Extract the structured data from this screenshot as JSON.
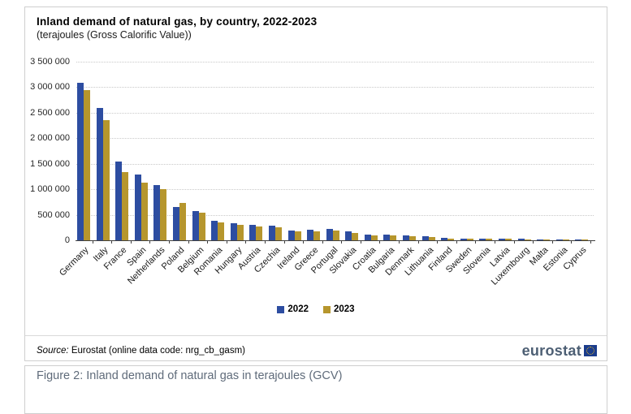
{
  "chart_data": {
    "type": "bar",
    "title": "Inland demand of natural gas, by country, 2022-2023",
    "subtitle": "(terajoules (Gross Calorific Value))",
    "categories": [
      "Germany",
      "Italy",
      "France",
      "Spain",
      "Netherlands",
      "Poland",
      "Belgium",
      "Romania",
      "Hungary",
      "Austria",
      "Czechia",
      "Ireland",
      "Greece",
      "Portugal",
      "Slovakia",
      "Croatia",
      "Bulgaria",
      "Denmark",
      "Lithuania",
      "Finland",
      "Sweden",
      "Slovenia",
      "Latvia",
      "Luxembourg",
      "Malta",
      "Estonia",
      "Cyprus"
    ],
    "series": [
      {
        "name": "2022",
        "color": "#2d4da1",
        "values": [
          3080000,
          2600000,
          1540000,
          1290000,
          1090000,
          660000,
          580000,
          390000,
          340000,
          305000,
          290000,
          195000,
          210000,
          230000,
          180000,
          105000,
          115000,
          100000,
          75000,
          55000,
          35000,
          32000,
          30000,
          25000,
          14000,
          12000,
          7000
        ]
      },
      {
        "name": "2023",
        "color": "#b6962d",
        "values": [
          2950000,
          2350000,
          1330000,
          1130000,
          1000000,
          735000,
          540000,
          355000,
          295000,
          265000,
          250000,
          175000,
          170000,
          185000,
          150000,
          90000,
          100000,
          80000,
          60000,
          40000,
          30000,
          30000,
          25000,
          22000,
          12000,
          10000,
          7000
        ]
      }
    ],
    "ylim": [
      0,
      3500000
    ],
    "ytick_step": 500000,
    "ytick_labels": [
      "0",
      "500 000",
      "1 000 000",
      "1 500 000",
      "2 000 000",
      "2 500 000",
      "3 000 000",
      "3 500 000"
    ],
    "grid": "horizontal-dotted",
    "legend_position": "bottom-center"
  },
  "legend": {
    "items": [
      {
        "label": "2022",
        "color": "#2d4da1"
      },
      {
        "label": "2023",
        "color": "#b6962d"
      }
    ]
  },
  "footer": {
    "source_prefix": "Source:",
    "source_text": " Eurostat (online data code: nrg_cb_gasm)",
    "logo_text": "eurostat"
  },
  "caption": {
    "text": "Figure 2: Inland demand of natural gas in terajoules (GCV)"
  }
}
